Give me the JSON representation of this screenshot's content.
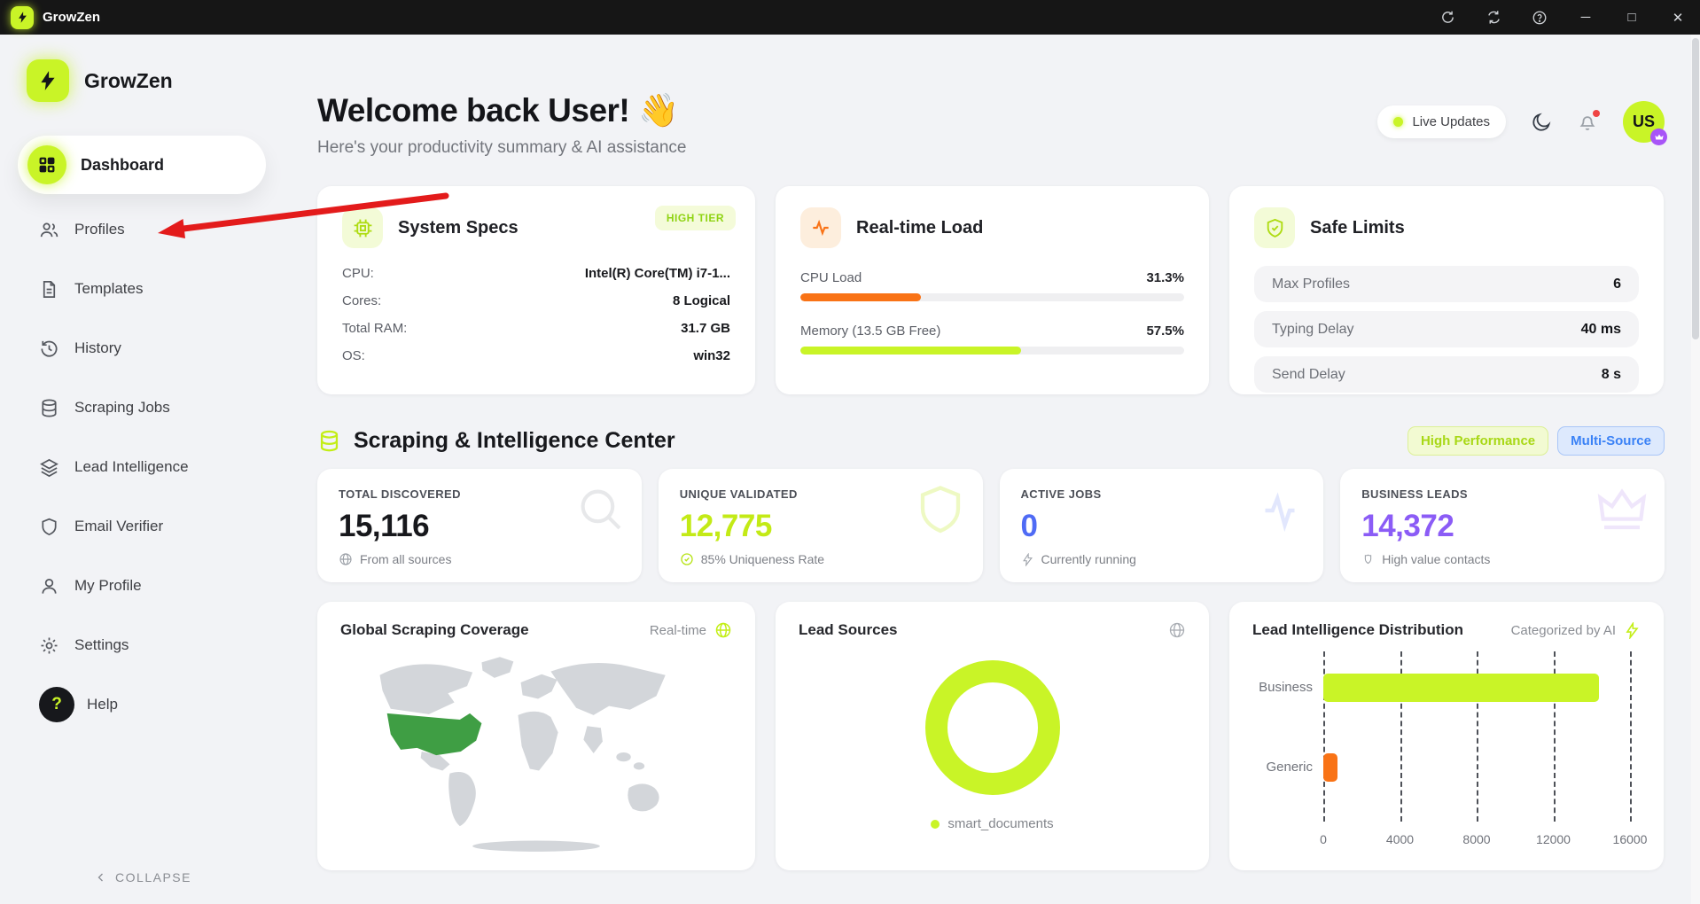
{
  "colors": {
    "accent_lime": "#c9f427",
    "pale_lime": "#f3fbd7",
    "orange": "#f97316",
    "blue": "#4f6bf5",
    "purple": "#8b5cf6",
    "red_arrow": "#e31b1b",
    "map_green": "#3f9e44",
    "titlebar_bg": "#161616"
  },
  "titlebar": {
    "app_name": "GrowZen"
  },
  "sidebar": {
    "brand": "GrowZen",
    "active_item": {
      "label": "Dashboard"
    },
    "items": [
      {
        "label": "Profiles"
      },
      {
        "label": "Templates"
      },
      {
        "label": "History"
      },
      {
        "label": "Scraping Jobs"
      },
      {
        "label": "Lead Intelligence"
      },
      {
        "label": "Email Verifier"
      },
      {
        "label": "My Profile"
      },
      {
        "label": "Settings"
      },
      {
        "label": "Help"
      }
    ],
    "collapse_label": "COLLAPSE"
  },
  "header": {
    "title": "Welcome back User!",
    "wave_emoji": "👋",
    "subtitle": "Here's your productivity summary & AI assistance",
    "live_updates_label": "Live Updates",
    "avatar_initials": "US"
  },
  "system_specs": {
    "title": "System Specs",
    "badge": "HIGH TIER",
    "rows": [
      {
        "label": "CPU:",
        "value": "Intel(R) Core(TM) i7-1..."
      },
      {
        "label": "Cores:",
        "value": "8 Logical"
      },
      {
        "label": "Total RAM:",
        "value": "31.7 GB"
      },
      {
        "label": "OS:",
        "value": "win32"
      }
    ]
  },
  "realtime_load": {
    "title": "Real-time Load",
    "rows": [
      {
        "label": "CPU Load",
        "value": "31.3%",
        "pct": 31.3
      },
      {
        "label": "Memory (13.5 GB Free)",
        "value": "57.5%",
        "pct": 57.5
      }
    ]
  },
  "safe_limits": {
    "title": "Safe Limits",
    "rows": [
      {
        "label": "Max Profiles",
        "value": "6"
      },
      {
        "label": "Typing Delay",
        "value": "40 ms"
      },
      {
        "label": "Send Delay",
        "value": "8 s"
      }
    ]
  },
  "section": {
    "title": "Scraping & Intelligence Center",
    "badges": [
      {
        "label": "High Performance"
      },
      {
        "label": "Multi-Source"
      }
    ]
  },
  "stats": [
    {
      "label": "TOTAL DISCOVERED",
      "value": "15,116",
      "note": "From all sources"
    },
    {
      "label": "UNIQUE VALIDATED",
      "value": "12,775",
      "note": "85% Uniqueness Rate"
    },
    {
      "label": "ACTIVE JOBS",
      "value": "0",
      "note": "Currently running"
    },
    {
      "label": "BUSINESS LEADS",
      "value": "14,372",
      "note": "High value contacts"
    }
  ],
  "coverage": {
    "title": "Global Scraping Coverage",
    "tag": "Real-time"
  },
  "lead_sources": {
    "title": "Lead Sources",
    "legend": "smart_documents"
  },
  "chart_data": {
    "type": "bar",
    "orientation": "horizontal",
    "title": "Lead Intelligence Distribution",
    "tag": "Categorized by AI",
    "categories": [
      "Business",
      "Generic"
    ],
    "values": [
      14372,
      744
    ],
    "xticks": [
      "0",
      "4000",
      "8000",
      "12000",
      "16000"
    ],
    "xlim": [
      0,
      16000
    ],
    "bar_colors": [
      "#c9f427",
      "#f97316"
    ],
    "grid": "dashed-vertical",
    "legend": "none"
  }
}
